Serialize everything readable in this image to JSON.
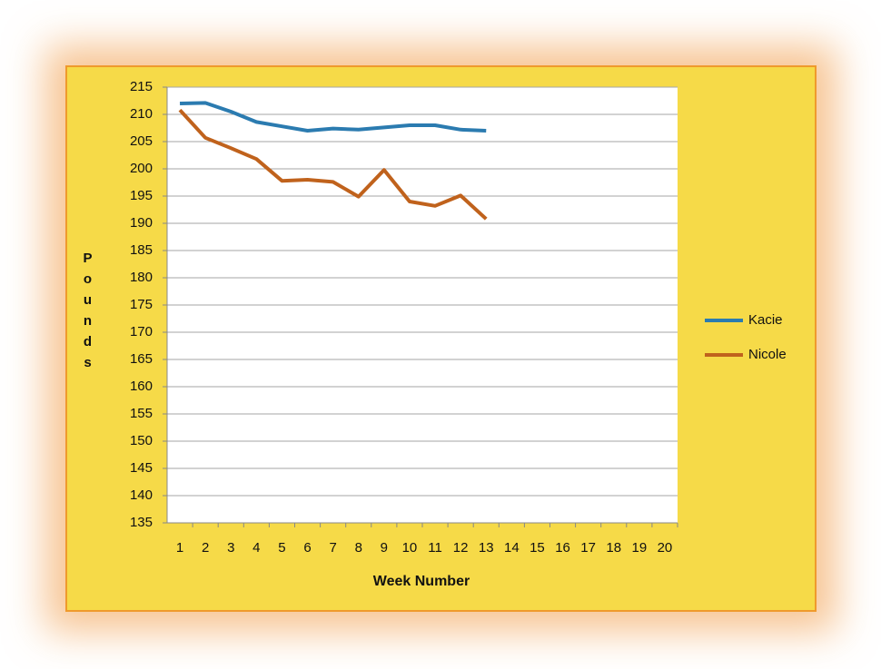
{
  "chart_data": {
    "type": "line",
    "xlabel": "Week Number",
    "ylabel": "Pounds",
    "categories": [
      "1",
      "2",
      "3",
      "4",
      "5",
      "6",
      "7",
      "8",
      "9",
      "10",
      "11",
      "12",
      "13",
      "14",
      "15",
      "16",
      "17",
      "18",
      "19",
      "20"
    ],
    "series": [
      {
        "name": "Kacie",
        "color": "#2b7bb0",
        "values": [
          212,
          212.1,
          210.5,
          208.6,
          207.8,
          207,
          207.4,
          207.2,
          207.6,
          208,
          208,
          207.2,
          207,
          null,
          null,
          null,
          null,
          null,
          null,
          null
        ]
      },
      {
        "name": "Nicole",
        "color": "#c0621c",
        "values": [
          210.8,
          205.7,
          203.8,
          201.8,
          197.8,
          198,
          197.6,
          194.9,
          199.8,
          194,
          193.2,
          195.1,
          190.8,
          null,
          null,
          null,
          null,
          null,
          null,
          null
        ]
      }
    ],
    "ylim": [
      135,
      215
    ],
    "yticks": [
      135,
      140,
      145,
      150,
      155,
      160,
      165,
      170,
      175,
      180,
      185,
      190,
      195,
      200,
      205,
      210,
      215
    ],
    "grid": true,
    "legend": "right"
  }
}
